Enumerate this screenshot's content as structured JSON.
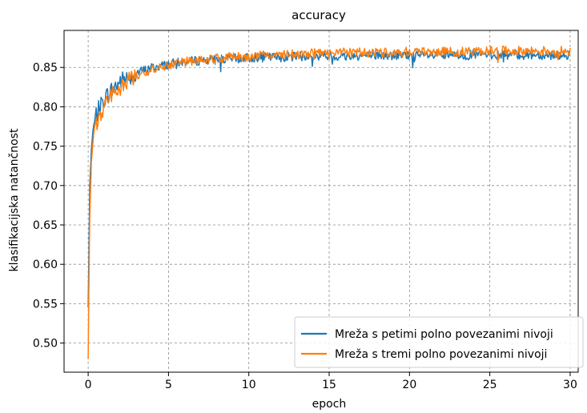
{
  "chart_data": {
    "type": "line",
    "title": "accuracy",
    "xlabel": "epoch",
    "ylabel": "klasifikacijska natančnost",
    "xlim": [
      -1.5,
      30.5
    ],
    "ylim": [
      0.463,
      0.897
    ],
    "grid": true,
    "legend_position": "lower-right",
    "x_ticks": [
      0,
      5,
      10,
      15,
      20,
      25,
      30
    ],
    "y_ticks": [
      0.5,
      0.55,
      0.6,
      0.65,
      0.7,
      0.75,
      0.8,
      0.85
    ],
    "series": [
      {
        "name": "Mreža s petimi polno povezanimi nivoji",
        "color": "#1f77b4",
        "x": [
          0.0,
          0.05,
          0.1,
          0.2,
          0.3,
          0.5,
          0.75,
          1.0,
          1.5,
          2.0,
          2.5,
          3.0,
          4.0,
          5.0,
          6.0,
          7.0,
          8.0,
          9.0,
          10.0,
          11.0,
          12.0,
          13.0,
          14.0,
          15.0,
          16.0,
          17.0,
          18.0,
          19.0,
          20.0,
          21.0,
          22.0,
          23.0,
          24.0,
          25.0,
          26.0,
          27.0,
          28.0,
          29.0,
          30.0
        ],
        "values": [
          0.545,
          0.62,
          0.7,
          0.745,
          0.77,
          0.79,
          0.8,
          0.81,
          0.822,
          0.832,
          0.838,
          0.843,
          0.85,
          0.854,
          0.857,
          0.859,
          0.86,
          0.861,
          0.862,
          0.863,
          0.863,
          0.864,
          0.864,
          0.864,
          0.864,
          0.865,
          0.865,
          0.865,
          0.865,
          0.865,
          0.865,
          0.865,
          0.866,
          0.866,
          0.866,
          0.866,
          0.866,
          0.866,
          0.866
        ]
      },
      {
        "name": "Mreža s tremi polno povezanimi nivoji",
        "color": "#ff7f0e",
        "x": [
          0.0,
          0.05,
          0.1,
          0.2,
          0.3,
          0.5,
          0.75,
          1.0,
          1.5,
          2.0,
          2.5,
          3.0,
          4.0,
          5.0,
          6.0,
          7.0,
          8.0,
          9.0,
          10.0,
          11.0,
          12.0,
          13.0,
          14.0,
          15.0,
          16.0,
          17.0,
          18.0,
          19.0,
          20.0,
          21.0,
          22.0,
          23.0,
          24.0,
          25.0,
          26.0,
          27.0,
          28.0,
          29.0,
          30.0
        ],
        "values": [
          0.48,
          0.58,
          0.66,
          0.73,
          0.755,
          0.775,
          0.79,
          0.8,
          0.815,
          0.826,
          0.833,
          0.84,
          0.848,
          0.853,
          0.857,
          0.859,
          0.861,
          0.863,
          0.864,
          0.865,
          0.866,
          0.867,
          0.868,
          0.868,
          0.869,
          0.869,
          0.869,
          0.87,
          0.87,
          0.87,
          0.87,
          0.87,
          0.87,
          0.871,
          0.871,
          0.871,
          0.871,
          0.871,
          0.871
        ]
      }
    ]
  }
}
